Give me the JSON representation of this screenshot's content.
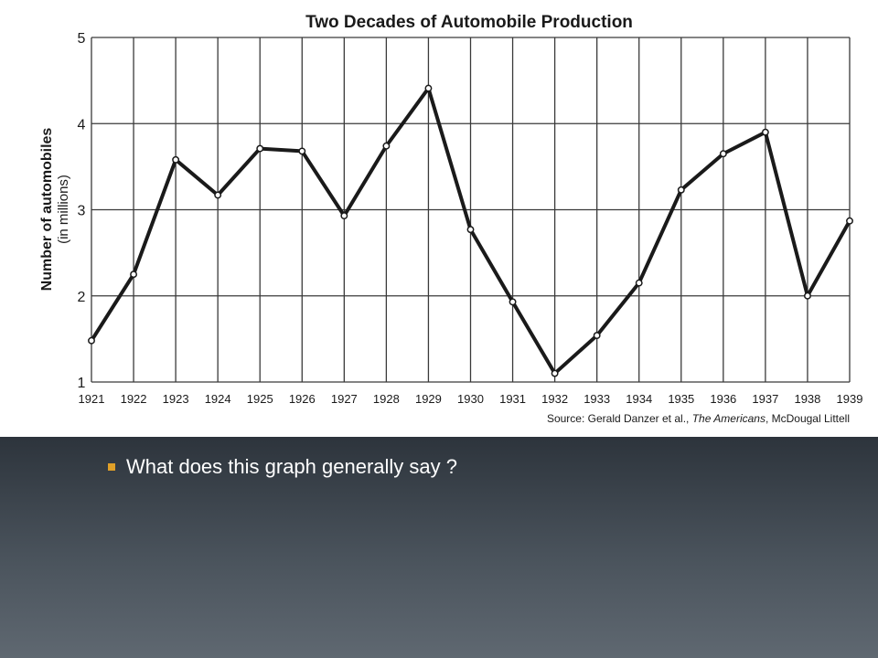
{
  "slide": {
    "bullet_text": "What does this graph generally say ?"
  },
  "colors": {
    "slide_bg_top": "#2d343c",
    "slide_bg_bottom": "#5f6871",
    "bullet_accent": "#e0a028",
    "line": "#1a1a1a"
  },
  "chart_data": {
    "type": "line",
    "title": "Two Decades of Automobile Production",
    "ylabel": "Number of automobiles",
    "ylabel_sub": "(in millions)",
    "xlabel": "",
    "source_prefix": "Source: Gerald Danzer et al., ",
    "source_italic": "The Americans",
    "source_suffix": ", McDougal Littell",
    "x": [
      "1921",
      "1922",
      "1923",
      "1924",
      "1925",
      "1926",
      "1927",
      "1928",
      "1929",
      "1930",
      "1931",
      "1932",
      "1933",
      "1934",
      "1935",
      "1936",
      "1937",
      "1938",
      "1939"
    ],
    "values": [
      1.48,
      2.25,
      3.58,
      3.17,
      3.71,
      3.68,
      2.93,
      3.74,
      4.41,
      2.77,
      1.93,
      1.1,
      1.54,
      2.15,
      3.23,
      3.65,
      3.9,
      2.0,
      2.87
    ],
    "ylim": [
      1,
      5
    ],
    "yticks": [
      1,
      2,
      3,
      4,
      5
    ],
    "grid": true,
    "markers": "open-circle"
  }
}
